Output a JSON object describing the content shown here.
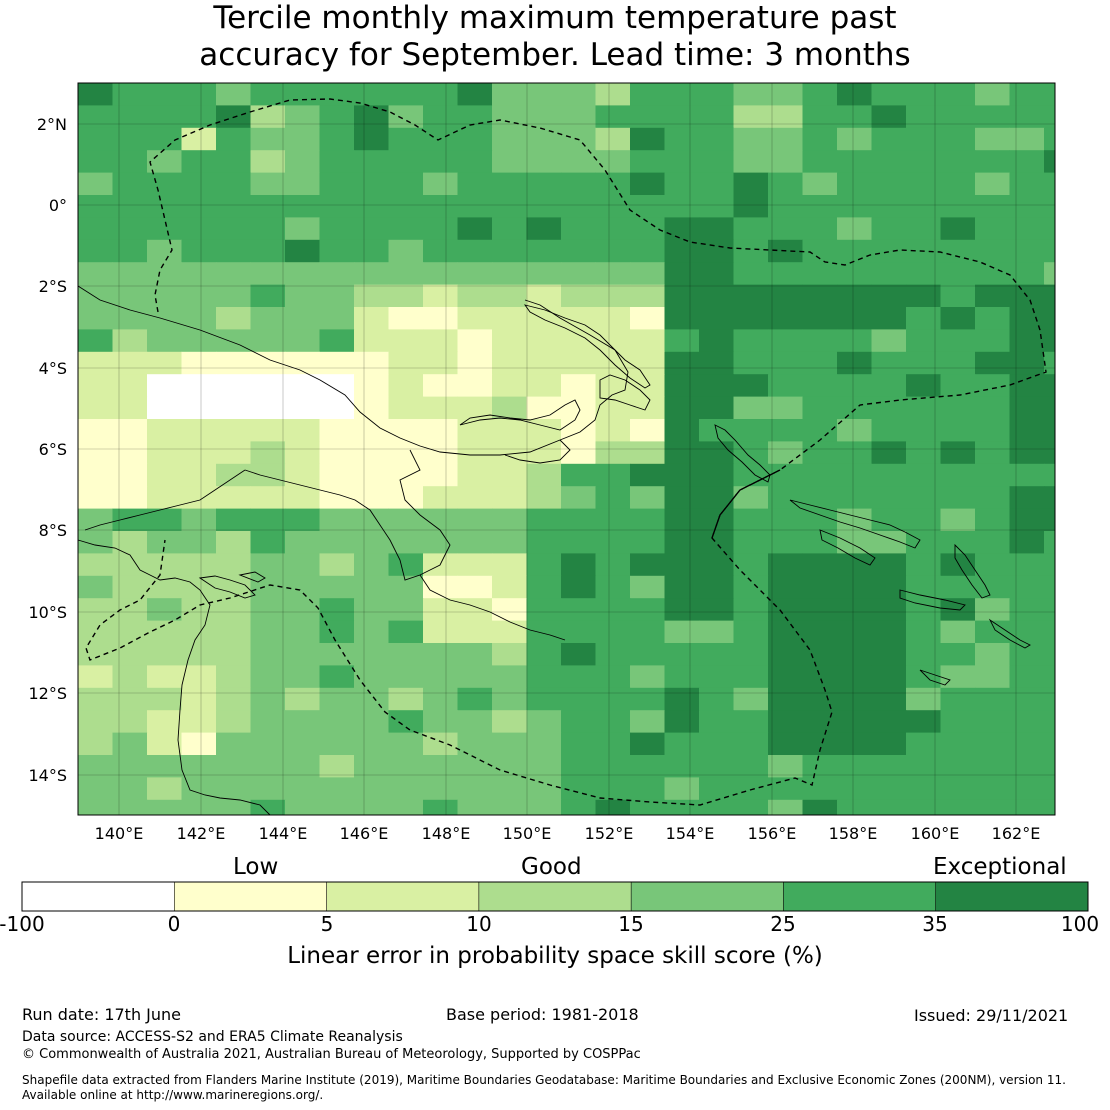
{
  "title_line1": "Tercile monthly maximum temperature past",
  "title_line2": "accuracy for September. Lead time: 3 months",
  "lon_labels": [
    "140°E",
    "142°E",
    "144°E",
    "146°E",
    "148°E",
    "150°E",
    "152°E",
    "154°E",
    "156°E",
    "158°E",
    "160°E",
    "162°E"
  ],
  "lat_labels": [
    "2°N",
    "0°",
    "2°S",
    "4°S",
    "6°S",
    "8°S",
    "10°S",
    "12°S",
    "14°S"
  ],
  "colorbar": {
    "category_labels": [
      "Low",
      "Good",
      "Exceptional"
    ],
    "ticks": [
      "-100",
      "0",
      "5",
      "10",
      "15",
      "25",
      "35",
      "100"
    ],
    "label": "Linear error in probability space skill score (%)",
    "colors": [
      "#ffffff",
      "#ffffcc",
      "#d9f0a3",
      "#addd8e",
      "#78c679",
      "#41ab5d",
      "#238443"
    ]
  },
  "footer": {
    "run_date": "Run date: 17th June",
    "base_period": "Base period: 1981-2018",
    "issued": "Issued: 29/11/2021",
    "data_source": "Data source: ACCESS-S2 and ERA5 Climate Reanalysis",
    "copyright": "© Commonwealth of Australia 2021, Australian Bureau of Meteorology, Supported by COSPPac",
    "shapefile_line1": "Shapefile data extracted from Flanders Marine Institute (2019), Maritime Boundaries Geodatabase: Maritime Boundaries and Exclusive Economic Zones (200NM), version 11.",
    "shapefile_line2": "Available online at http://www.marineregions.org/."
  }
}
